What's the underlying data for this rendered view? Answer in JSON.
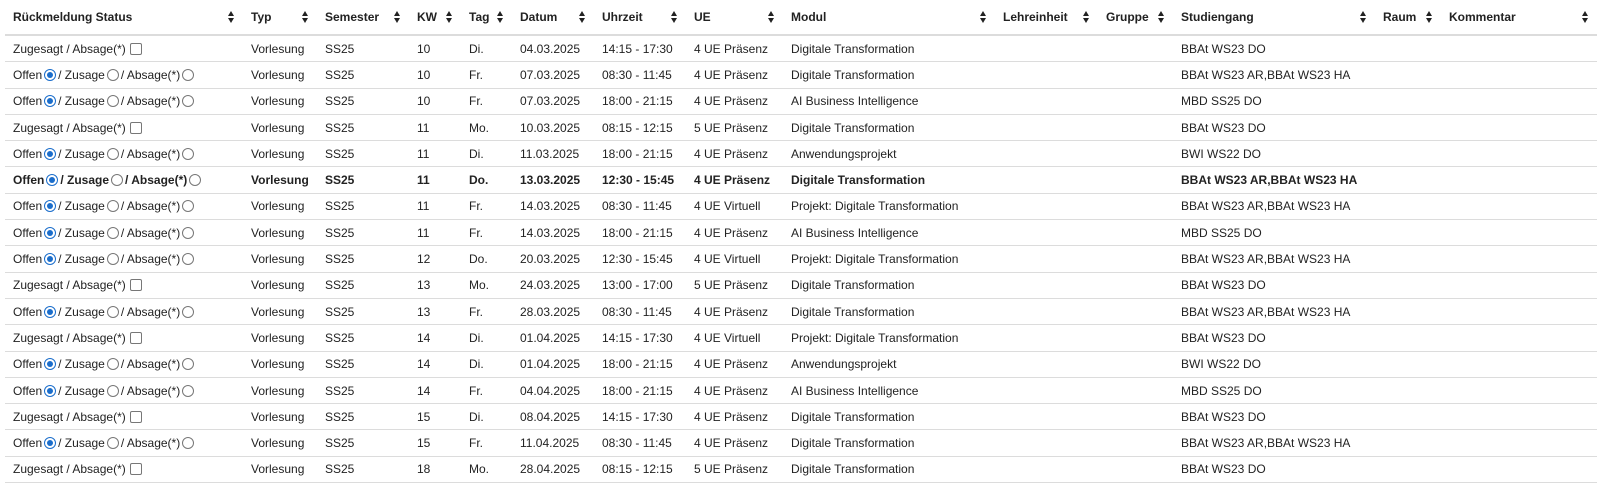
{
  "headers": [
    "Rückmeldung Status",
    "Typ",
    "Semester",
    "KW",
    "Tag",
    "Datum",
    "Uhrzeit",
    "UE",
    "Modul",
    "Lehreinheit",
    "Gruppe",
    "Studiengang",
    "Raum",
    "Kommentar"
  ],
  "status_labels": {
    "offen": "Offen",
    "zusage": "/ Zusage",
    "absage_radio": "/ Absage(*)",
    "zugesagt": "Zugesagt / Absage(*)"
  },
  "rows": [
    {
      "status": "zugesagt",
      "typ": "Vorlesung",
      "semester": "SS25",
      "kw": "10",
      "tag": "Di.",
      "datum": "04.03.2025",
      "uhrzeit": "14:15 - 17:30",
      "ue": "4 UE Präsenz",
      "modul": "Digitale Transformation",
      "lehreinheit": "",
      "gruppe": "",
      "studiengang": "BBAt WS23 DO",
      "raum": "",
      "kommentar": ""
    },
    {
      "status": "offen",
      "typ": "Vorlesung",
      "semester": "SS25",
      "kw": "10",
      "tag": "Fr.",
      "datum": "07.03.2025",
      "uhrzeit": "08:30 - 11:45",
      "ue": "4 UE Präsenz",
      "modul": "Digitale Transformation",
      "lehreinheit": "",
      "gruppe": "",
      "studiengang": "BBAt WS23 AR,BBAt WS23 HA",
      "raum": "",
      "kommentar": ""
    },
    {
      "status": "offen",
      "typ": "Vorlesung",
      "semester": "SS25",
      "kw": "10",
      "tag": "Fr.",
      "datum": "07.03.2025",
      "uhrzeit": "18:00 - 21:15",
      "ue": "4 UE Präsenz",
      "modul": "AI Business Intelligence",
      "lehreinheit": "",
      "gruppe": "",
      "studiengang": "MBD SS25 DO",
      "raum": "",
      "kommentar": ""
    },
    {
      "status": "zugesagt",
      "typ": "Vorlesung",
      "semester": "SS25",
      "kw": "11",
      "tag": "Mo.",
      "datum": "10.03.2025",
      "uhrzeit": "08:15 - 12:15",
      "ue": "5 UE Präsenz",
      "modul": "Digitale Transformation",
      "lehreinheit": "",
      "gruppe": "",
      "studiengang": "BBAt WS23 DO",
      "raum": "",
      "kommentar": ""
    },
    {
      "status": "offen",
      "typ": "Vorlesung",
      "semester": "SS25",
      "kw": "11",
      "tag": "Di.",
      "datum": "11.03.2025",
      "uhrzeit": "18:00 - 21:15",
      "ue": "4 UE Präsenz",
      "modul": "Anwendungsprojekt",
      "lehreinheit": "",
      "gruppe": "",
      "studiengang": "BWI WS22 DO",
      "raum": "",
      "kommentar": ""
    },
    {
      "status": "offen",
      "bold": true,
      "typ": "Vorlesung",
      "semester": "SS25",
      "kw": "11",
      "tag": "Do.",
      "datum": "13.03.2025",
      "uhrzeit": "12:30 - 15:45",
      "ue": "4 UE Präsenz",
      "modul": "Digitale Transformation",
      "lehreinheit": "",
      "gruppe": "",
      "studiengang": "BBAt WS23 AR,BBAt WS23 HA",
      "raum": "",
      "kommentar": ""
    },
    {
      "status": "offen",
      "typ": "Vorlesung",
      "semester": "SS25",
      "kw": "11",
      "tag": "Fr.",
      "datum": "14.03.2025",
      "uhrzeit": "08:30 - 11:45",
      "ue": "4 UE Virtuell",
      "modul": "Projekt: Digitale Transformation",
      "lehreinheit": "",
      "gruppe": "",
      "studiengang": "BBAt WS23 AR,BBAt WS23 HA",
      "raum": "",
      "kommentar": ""
    },
    {
      "status": "offen",
      "typ": "Vorlesung",
      "semester": "SS25",
      "kw": "11",
      "tag": "Fr.",
      "datum": "14.03.2025",
      "uhrzeit": "18:00 - 21:15",
      "ue": "4 UE Präsenz",
      "modul": "AI Business Intelligence",
      "lehreinheit": "",
      "gruppe": "",
      "studiengang": "MBD SS25 DO",
      "raum": "",
      "kommentar": ""
    },
    {
      "status": "offen",
      "typ": "Vorlesung",
      "semester": "SS25",
      "kw": "12",
      "tag": "Do.",
      "datum": "20.03.2025",
      "uhrzeit": "12:30 - 15:45",
      "ue": "4 UE Virtuell",
      "modul": "Projekt: Digitale Transformation",
      "lehreinheit": "",
      "gruppe": "",
      "studiengang": "BBAt WS23 AR,BBAt WS23 HA",
      "raum": "",
      "kommentar": ""
    },
    {
      "status": "zugesagt",
      "typ": "Vorlesung",
      "semester": "SS25",
      "kw": "13",
      "tag": "Mo.",
      "datum": "24.03.2025",
      "uhrzeit": "13:00 - 17:00",
      "ue": "5 UE Präsenz",
      "modul": "Digitale Transformation",
      "lehreinheit": "",
      "gruppe": "",
      "studiengang": "BBAt WS23 DO",
      "raum": "",
      "kommentar": ""
    },
    {
      "status": "offen",
      "typ": "Vorlesung",
      "semester": "SS25",
      "kw": "13",
      "tag": "Fr.",
      "datum": "28.03.2025",
      "uhrzeit": "08:30 - 11:45",
      "ue": "4 UE Präsenz",
      "modul": "Digitale Transformation",
      "lehreinheit": "",
      "gruppe": "",
      "studiengang": "BBAt WS23 AR,BBAt WS23 HA",
      "raum": "",
      "kommentar": ""
    },
    {
      "status": "zugesagt",
      "typ": "Vorlesung",
      "semester": "SS25",
      "kw": "14",
      "tag": "Di.",
      "datum": "01.04.2025",
      "uhrzeit": "14:15 - 17:30",
      "ue": "4 UE Virtuell",
      "modul": "Projekt: Digitale Transformation",
      "lehreinheit": "",
      "gruppe": "",
      "studiengang": "BBAt WS23 DO",
      "raum": "",
      "kommentar": ""
    },
    {
      "status": "offen",
      "typ": "Vorlesung",
      "semester": "SS25",
      "kw": "14",
      "tag": "Di.",
      "datum": "01.04.2025",
      "uhrzeit": "18:00 - 21:15",
      "ue": "4 UE Präsenz",
      "modul": "Anwendungsprojekt",
      "lehreinheit": "",
      "gruppe": "",
      "studiengang": "BWI WS22 DO",
      "raum": "",
      "kommentar": ""
    },
    {
      "status": "offen",
      "typ": "Vorlesung",
      "semester": "SS25",
      "kw": "14",
      "tag": "Fr.",
      "datum": "04.04.2025",
      "uhrzeit": "18:00 - 21:15",
      "ue": "4 UE Präsenz",
      "modul": "AI Business Intelligence",
      "lehreinheit": "",
      "gruppe": "",
      "studiengang": "MBD SS25 DO",
      "raum": "",
      "kommentar": ""
    },
    {
      "status": "zugesagt",
      "typ": "Vorlesung",
      "semester": "SS25",
      "kw": "15",
      "tag": "Di.",
      "datum": "08.04.2025",
      "uhrzeit": "14:15 - 17:30",
      "ue": "4 UE Präsenz",
      "modul": "Digitale Transformation",
      "lehreinheit": "",
      "gruppe": "",
      "studiengang": "BBAt WS23 DO",
      "raum": "",
      "kommentar": ""
    },
    {
      "status": "offen",
      "typ": "Vorlesung",
      "semester": "SS25",
      "kw": "15",
      "tag": "Fr.",
      "datum": "11.04.2025",
      "uhrzeit": "08:30 - 11:45",
      "ue": "4 UE Präsenz",
      "modul": "Digitale Transformation",
      "lehreinheit": "",
      "gruppe": "",
      "studiengang": "BBAt WS23 AR,BBAt WS23 HA",
      "raum": "",
      "kommentar": ""
    },
    {
      "status": "zugesagt",
      "typ": "Vorlesung",
      "semester": "SS25",
      "kw": "18",
      "tag": "Mo.",
      "datum": "28.04.2025",
      "uhrzeit": "08:15 - 12:15",
      "ue": "5 UE Präsenz",
      "modul": "Digitale Transformation",
      "lehreinheit": "",
      "gruppe": "",
      "studiengang": "BBAt WS23 DO",
      "raum": "",
      "kommentar": ""
    }
  ]
}
